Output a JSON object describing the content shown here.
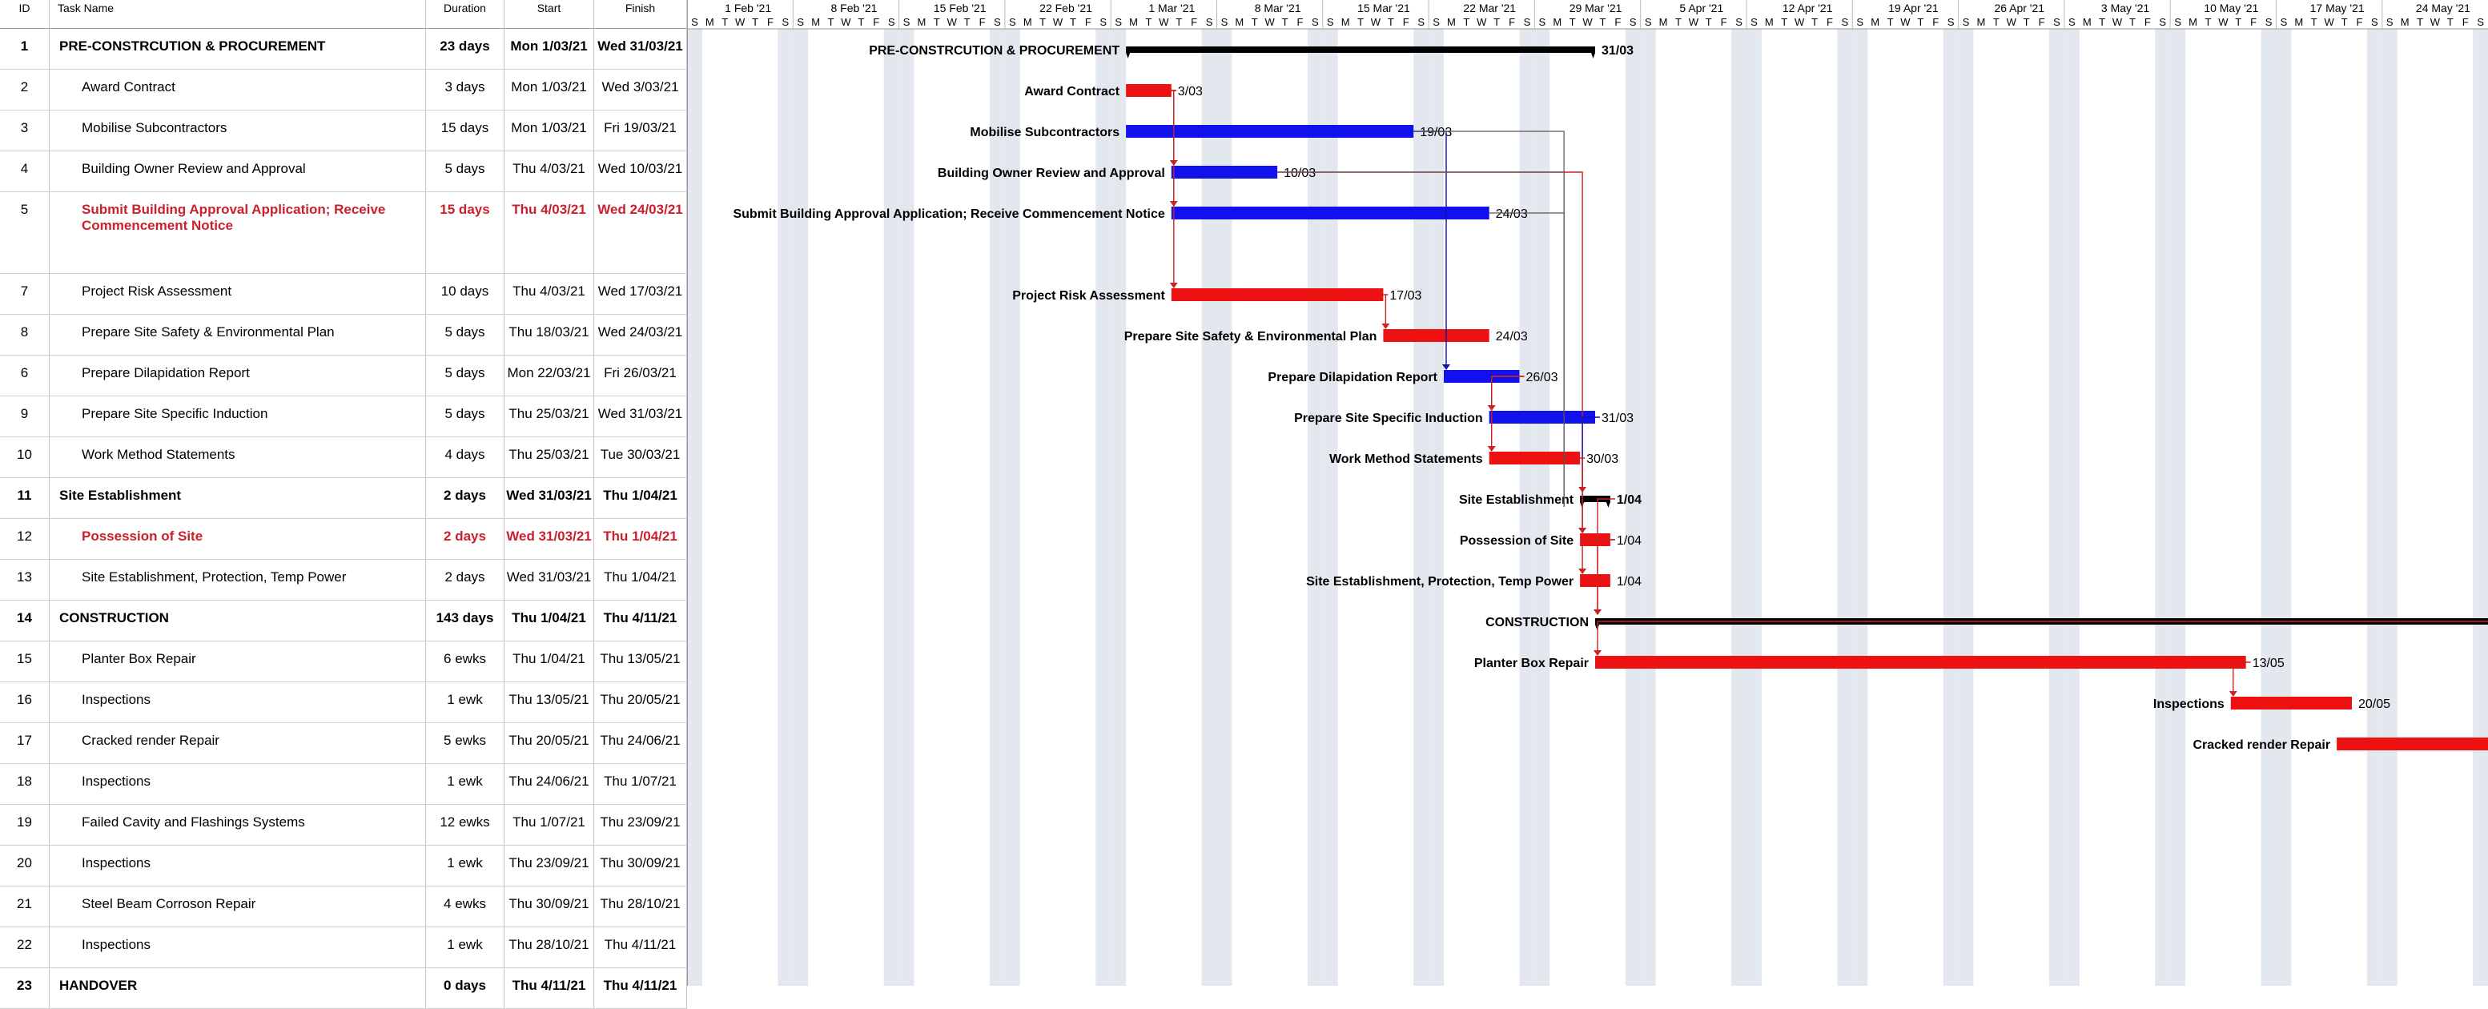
{
  "columns": {
    "id": "ID",
    "name": "Task Name",
    "duration": "Duration",
    "start": "Start",
    "finish": "Finish"
  },
  "timescale": {
    "weeks": [
      "1 Feb '21",
      "8 Feb '21",
      "15 Feb '21",
      "22 Feb '21",
      "1 Mar '21",
      "8 Mar '21",
      "15 Mar '21",
      "22 Mar '21",
      "29 Mar '21",
      "5 Apr '21",
      "12 Apr '21",
      "19 Apr '21",
      "26 Apr '21",
      "3 May '21",
      "10 May '21",
      "17 May '21",
      "24 May '21"
    ],
    "day_letters": [
      "S",
      "M",
      "T",
      "W",
      "T",
      "F",
      "S"
    ]
  },
  "colors": {
    "critical": "#ee1111",
    "normal": "#1111ee",
    "summary": "#000000",
    "grid": "#b9b9b9",
    "weekend": "#e3e7ee"
  },
  "tasks": [
    {
      "id": "1",
      "name": "PRE-CONSTRCUTION & PROCUREMENT",
      "duration": "23 days",
      "start": "Mon 1/03/21",
      "finish": "Wed 31/03/21",
      "style": "summary",
      "bar": "summary",
      "bar_start": "2021-03-01",
      "bar_end": "2021-03-31",
      "bar_label": "PRE-CONSTRCUTION & PROCUREMENT",
      "end_label": "31/03"
    },
    {
      "id": "2",
      "name": "Award Contract",
      "duration": "3 days",
      "start": "Mon 1/03/21",
      "finish": "Wed 3/03/21",
      "style": "normal",
      "bar": "critical",
      "bar_start": "2021-03-01",
      "bar_end": "2021-03-03",
      "bar_label": "Award Contract",
      "end_label": "3/03"
    },
    {
      "id": "3",
      "name": "Mobilise Subcontractors",
      "duration": "15 days",
      "start": "Mon 1/03/21",
      "finish": "Fri 19/03/21",
      "style": "normal",
      "bar": "normal",
      "bar_start": "2021-03-01",
      "bar_end": "2021-03-19",
      "bar_label": "Mobilise Subcontractors",
      "end_label": "19/03"
    },
    {
      "id": "4",
      "name": "Building Owner Review and Approval",
      "duration": "5 days",
      "start": "Thu 4/03/21",
      "finish": "Wed 10/03/21",
      "style": "normal",
      "bar": "normal",
      "bar_start": "2021-03-04",
      "bar_end": "2021-03-10",
      "bar_label": "Building Owner Review and Approval",
      "end_label": "10/03"
    },
    {
      "id": "5",
      "name": "Submit Building Approval Application; Receive Commencement Notice",
      "duration": "15 days",
      "start": "Thu 4/03/21",
      "finish": "Wed 24/03/21",
      "style": "crit",
      "bar": "normal",
      "bar_start": "2021-03-04",
      "bar_end": "2021-03-24",
      "bar_label": "Submit Building Approval Application; Receive Commencement Notice",
      "end_label": "24/03",
      "tall": true
    },
    {
      "id": "7",
      "name": "Project Risk Assessment",
      "duration": "10 days",
      "start": "Thu 4/03/21",
      "finish": "Wed 17/03/21",
      "style": "normal",
      "bar": "critical",
      "bar_start": "2021-03-04",
      "bar_end": "2021-03-17",
      "bar_label": "Project Risk Assessment",
      "end_label": "17/03"
    },
    {
      "id": "8",
      "name": "Prepare Site Safety & Environmental Plan",
      "duration": "5 days",
      "start": "Thu 18/03/21",
      "finish": "Wed 24/03/21",
      "style": "normal",
      "bar": "critical",
      "bar_start": "2021-03-18",
      "bar_end": "2021-03-24",
      "bar_label": "Prepare Site Safety & Environmental Plan",
      "end_label": "24/03"
    },
    {
      "id": "6",
      "name": "Prepare Dilapidation Report",
      "duration": "5 days",
      "start": "Mon 22/03/21",
      "finish": "Fri 26/03/21",
      "style": "normal",
      "bar": "normal",
      "bar_start": "2021-03-22",
      "bar_end": "2021-03-26",
      "bar_label": "Prepare Dilapidation Report",
      "end_label": "26/03"
    },
    {
      "id": "9",
      "name": "Prepare Site Specific Induction",
      "duration": "5 days",
      "start": "Thu 25/03/21",
      "finish": "Wed 31/03/21",
      "style": "normal",
      "bar": "normal",
      "bar_start": "2021-03-25",
      "bar_end": "2021-03-31",
      "bar_label": "Prepare Site Specific Induction",
      "end_label": "31/03"
    },
    {
      "id": "10",
      "name": "Work Method Statements",
      "duration": "4 days",
      "start": "Thu 25/03/21",
      "finish": "Tue 30/03/21",
      "style": "normal",
      "bar": "critical",
      "bar_start": "2021-03-25",
      "bar_end": "2021-03-30",
      "bar_label": "Work Method Statements",
      "end_label": "30/03"
    },
    {
      "id": "11",
      "name": "Site Establishment",
      "duration": "2 days",
      "start": "Wed 31/03/21",
      "finish": "Thu 1/04/21",
      "style": "summary",
      "bar": "summary",
      "bar_start": "2021-03-31",
      "bar_end": "2021-04-01",
      "bar_label": "Site Establishment",
      "end_label": "1/04"
    },
    {
      "id": "12",
      "name": "Possession of Site",
      "duration": "2 days",
      "start": "Wed 31/03/21",
      "finish": "Thu 1/04/21",
      "style": "crit",
      "bar": "critical",
      "bar_start": "2021-03-31",
      "bar_end": "2021-04-01",
      "bar_label": "Possession of Site",
      "end_label": "1/04"
    },
    {
      "id": "13",
      "name": "Site Establishment, Protection, Temp Power",
      "duration": "2 days",
      "start": "Wed 31/03/21",
      "finish": "Thu 1/04/21",
      "style": "normal",
      "bar": "critical",
      "bar_start": "2021-03-31",
      "bar_end": "2021-04-01",
      "bar_label": "Site Establishment, Protection, Temp Power",
      "end_label": "1/04"
    },
    {
      "id": "14",
      "name": "CONSTRUCTION",
      "duration": "143 days",
      "start": "Thu 1/04/21",
      "finish": "Thu 4/11/21",
      "style": "summary",
      "bar": "summary",
      "bar_start": "2021-04-01",
      "bar_end": "2021-11-04",
      "bar_label": "CONSTRUCTION",
      "end_label": ""
    },
    {
      "id": "15",
      "name": "Planter Box Repair",
      "duration": "6 ewks",
      "start": "Thu 1/04/21",
      "finish": "Thu 13/05/21",
      "style": "normal",
      "bar": "critical",
      "bar_start": "2021-04-01",
      "bar_end": "2021-05-13",
      "bar_label": "Planter Box Repair",
      "end_label": "13/05"
    },
    {
      "id": "16",
      "name": "Inspections",
      "duration": "1 ewk",
      "start": "Thu 13/05/21",
      "finish": "Thu 20/05/21",
      "style": "normal",
      "bar": "critical",
      "bar_start": "2021-05-13",
      "bar_end": "2021-05-20",
      "bar_label": "Inspections",
      "end_label": "20/05"
    },
    {
      "id": "17",
      "name": "Cracked render Repair",
      "duration": "5 ewks",
      "start": "Thu 20/05/21",
      "finish": "Thu 24/06/21",
      "style": "normal",
      "bar": "critical",
      "bar_start": "2021-05-20",
      "bar_end": "2021-06-24",
      "bar_label": "Cracked render Repair",
      "end_label": ""
    },
    {
      "id": "18",
      "name": "Inspections",
      "duration": "1 ewk",
      "start": "Thu 24/06/21",
      "finish": "Thu 1/07/21",
      "style": "normal",
      "bar": "none"
    },
    {
      "id": "19",
      "name": "Failed Cavity and Flashings Systems",
      "duration": "12 ewks",
      "start": "Thu 1/07/21",
      "finish": "Thu 23/09/21",
      "style": "normal",
      "bar": "none"
    },
    {
      "id": "20",
      "name": "Inspections",
      "duration": "1 ewk",
      "start": "Thu 23/09/21",
      "finish": "Thu 30/09/21",
      "style": "normal",
      "bar": "none"
    },
    {
      "id": "21",
      "name": "Steel Beam Corroson Repair",
      "duration": "4 ewks",
      "start": "Thu 30/09/21",
      "finish": "Thu 28/10/21",
      "style": "normal",
      "bar": "none"
    },
    {
      "id": "22",
      "name": "Inspections",
      "duration": "1 ewk",
      "start": "Thu 28/10/21",
      "finish": "Thu 4/11/21",
      "style": "normal",
      "bar": "none"
    },
    {
      "id": "23",
      "name": "HANDOVER",
      "duration": "0 days",
      "start": "Thu 4/11/21",
      "finish": "Thu 4/11/21",
      "style": "summary",
      "bar": "none"
    }
  ]
}
